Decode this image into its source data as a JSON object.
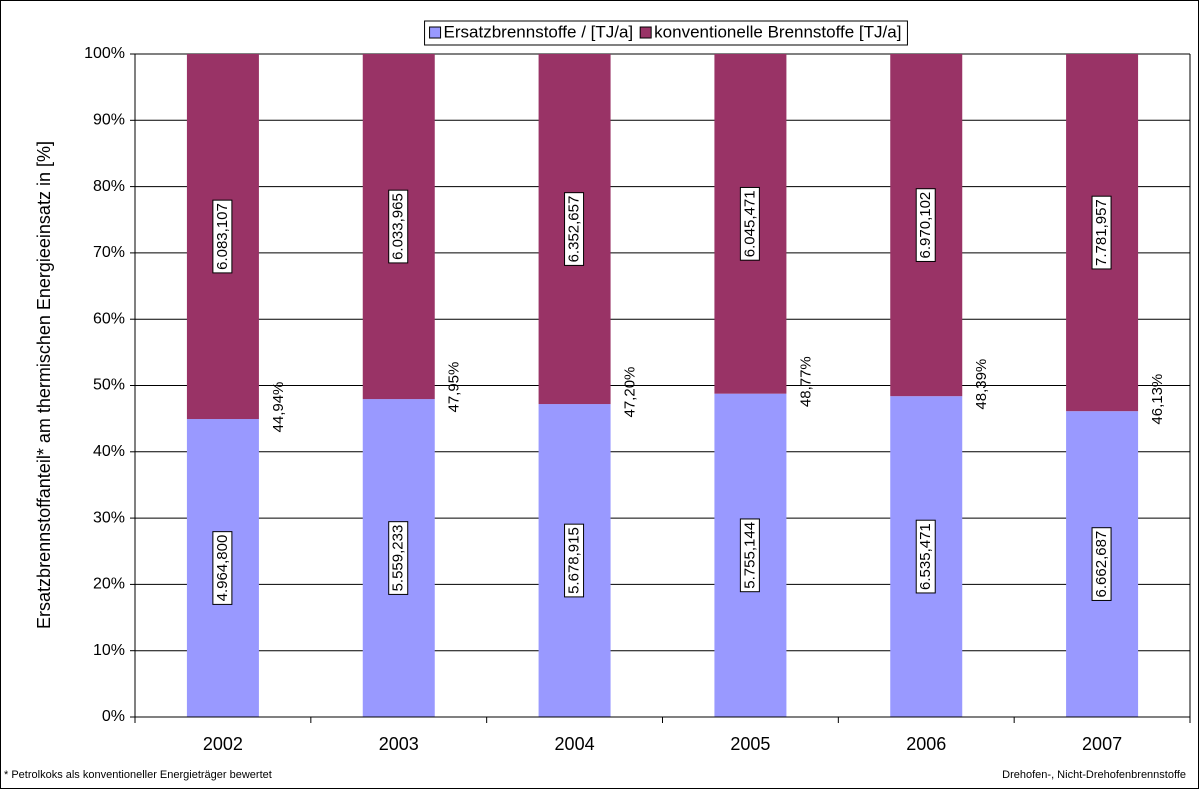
{
  "chart_data": {
    "type": "bar",
    "stacked": true,
    "y_axis_label": "Ersatzbrennstoffanteil* am thermischen Energieeinsatz in [%]",
    "categories": [
      "2002",
      "2003",
      "2004",
      "2005",
      "2006",
      "2007"
    ],
    "series": [
      {
        "name": "Ersatzbrennstoffe / [TJ/a]",
        "color": "#9999ff",
        "values": [
          44.94,
          47.95,
          47.2,
          48.77,
          48.39,
          46.13
        ],
        "value_labels": [
          "44,94%",
          "47,95%",
          "47,20%",
          "48,77%",
          "48,39%",
          "46,13%"
        ],
        "tj_labels": [
          "4.964,800",
          "5.559,233",
          "5.678,915",
          "5.755,144",
          "6.535,471",
          "6.662,687"
        ]
      },
      {
        "name": "konventionelle Brennstoffe [TJ/a]",
        "color": "#993366",
        "values": [
          55.06,
          52.05,
          52.8,
          51.23,
          51.61,
          53.87
        ],
        "tj_labels": [
          "6.083,107",
          "6.033,965",
          "6.352,657",
          "6.045,471",
          "6.970,102",
          "7.781,957"
        ]
      }
    ],
    "ylim": [
      0,
      100
    ],
    "yticks": [
      {
        "value": 0,
        "label": "0%"
      },
      {
        "value": 10,
        "label": "10%"
      },
      {
        "value": 20,
        "label": "20%"
      },
      {
        "value": 30,
        "label": "30%"
      },
      {
        "value": 40,
        "label": "40%"
      },
      {
        "value": 50,
        "label": "50%"
      },
      {
        "value": 60,
        "label": "60%"
      },
      {
        "value": 70,
        "label": "70%"
      },
      {
        "value": 80,
        "label": "80%"
      },
      {
        "value": 90,
        "label": "90%"
      },
      {
        "value": 100,
        "label": "100%"
      }
    ],
    "grid": true,
    "legend": "top",
    "footnote_left": "* Petrolkoks als konventioneller Energieträger bewertet",
    "footnote_right": "Drehofen-, Nicht-Drehofenbrennstoffe"
  }
}
